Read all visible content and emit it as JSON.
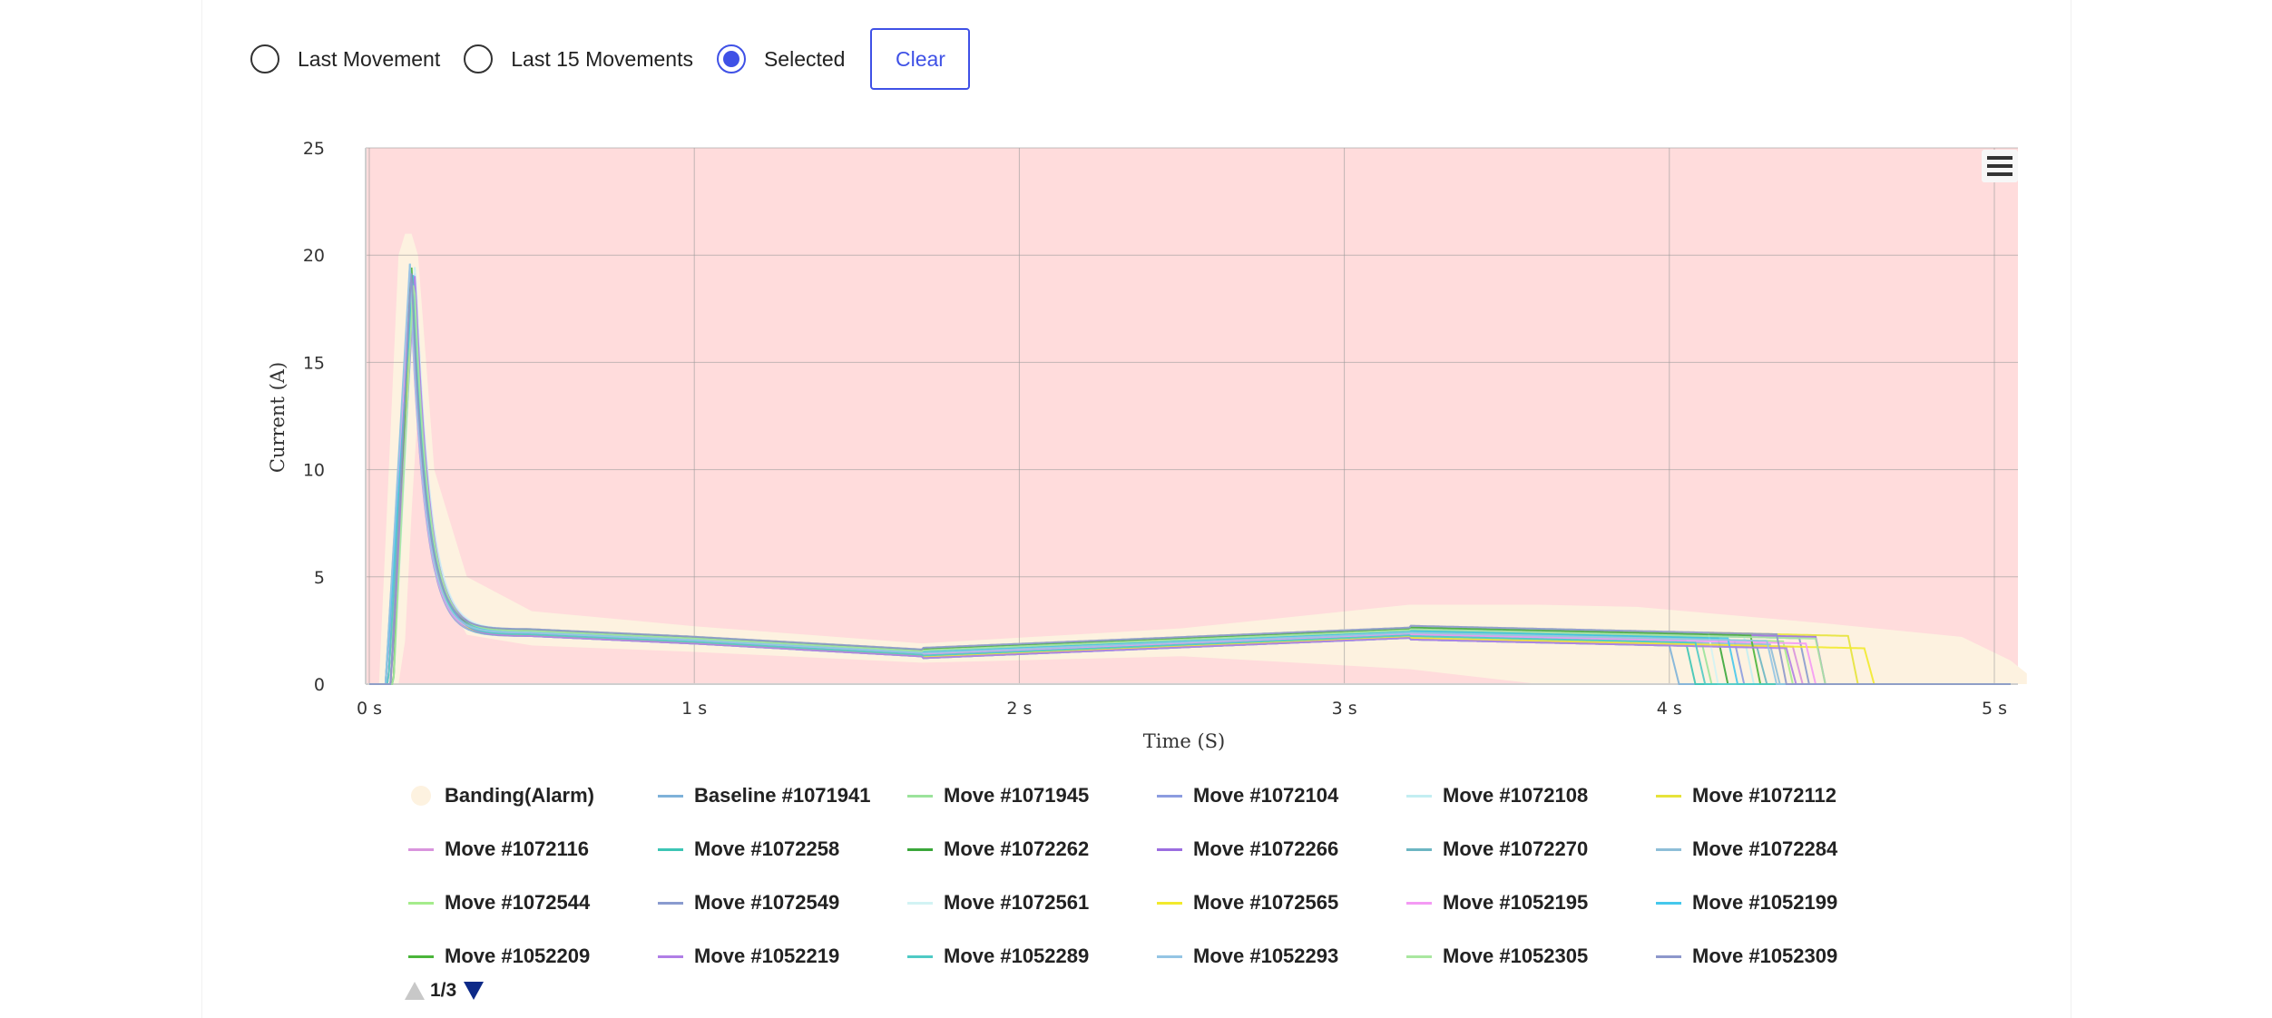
{
  "controls": {
    "options": [
      {
        "label": "Last Movement",
        "selected": false
      },
      {
        "label": "Last 15 Movements",
        "selected": false
      },
      {
        "label": "Selected",
        "selected": true
      }
    ],
    "clear_label": "Clear"
  },
  "colors": {
    "accent": "#3f51e6",
    "plot_bg": "#ffdcdc",
    "band": "#fdf2e0",
    "pager_active": "#0d2a88"
  },
  "chart_data": {
    "type": "line",
    "xlabel": "Time (S)",
    "ylabel": "Current (A)",
    "xlim": [
      0,
      5.1
    ],
    "ylim": [
      0,
      25
    ],
    "x_ticks": [
      0,
      1,
      2,
      3,
      4,
      5
    ],
    "x_tick_labels": [
      "0 s",
      "1 s",
      "2 s",
      "3 s",
      "4 s",
      "5 s"
    ],
    "y_ticks": [
      0,
      5,
      10,
      15,
      20,
      25
    ],
    "y_tick_labels": [
      "0",
      "5",
      "10",
      "15",
      "20",
      "25"
    ],
    "grid": true,
    "legend_position": "bottom",
    "band": {
      "name": "Banding(Alarm)",
      "x": [
        0,
        0.03,
        0.06,
        0.09,
        0.11,
        0.13,
        0.15,
        0.2,
        0.3,
        0.5,
        1.0,
        1.7,
        2.5,
        3.2,
        3.6,
        3.9,
        4.5,
        4.9,
        5.05,
        5.1
      ],
      "upper": [
        0,
        0,
        10,
        20,
        21,
        21,
        20,
        10,
        5,
        3.4,
        2.7,
        1.9,
        2.6,
        3.7,
        3.7,
        3.6,
        2.8,
        2.2,
        1.1,
        0.5
      ],
      "lower": [
        0,
        0,
        0,
        0,
        2,
        8,
        13,
        5,
        2.3,
        1.8,
        1.5,
        1.0,
        1.3,
        0.7,
        0,
        0,
        0,
        0,
        0,
        0
      ]
    },
    "series": [
      {
        "name": "Baseline #1071941",
        "color": "#7eb2d9",
        "end": 4.0
      },
      {
        "name": "Move #1071945",
        "color": "#9be39b",
        "end": 4.1
      },
      {
        "name": "Move #1072104",
        "color": "#8c9ce0",
        "end": 4.2
      },
      {
        "name": "Move #1072108",
        "color": "#c3eef2",
        "end": 4.23
      },
      {
        "name": "Move #1072112",
        "color": "#e6e33a",
        "end": 4.55
      },
      {
        "name": "Move #1072116",
        "color": "#d994dd",
        "end": 4.38
      },
      {
        "name": "Move #1072258",
        "color": "#3cc5b5",
        "end": 4.05
      },
      {
        "name": "Move #1072262",
        "color": "#3aa73a",
        "end": 4.15
      },
      {
        "name": "Move #1072266",
        "color": "#9b6de0",
        "end": 4.45
      },
      {
        "name": "Move #1072270",
        "color": "#6cb6c2",
        "end": 4.27
      },
      {
        "name": "Move #1072284",
        "color": "#8ebed8",
        "end": 4.31
      },
      {
        "name": "Move #1072544",
        "color": "#a5ec8c",
        "end": 4.35
      },
      {
        "name": "Move #1072549",
        "color": "#8a9bcf",
        "end": 4.4
      },
      {
        "name": "Move #1072561",
        "color": "#d2f3f4",
        "end": 4.12
      },
      {
        "name": "Move #1072565",
        "color": "#f2ea2c",
        "end": 4.6
      },
      {
        "name": "Move #1052195",
        "color": "#f49af4",
        "end": 4.42
      },
      {
        "name": "Move #1052199",
        "color": "#45c8ec",
        "end": 4.18
      },
      {
        "name": "Move #1052209",
        "color": "#4ab53a",
        "end": 4.25
      },
      {
        "name": "Move #1052219",
        "color": "#b07ee6",
        "end": 4.36
      },
      {
        "name": "Move #1052289",
        "color": "#4fcac5",
        "end": 4.08
      },
      {
        "name": "Move #1052293",
        "color": "#94c5e4",
        "end": 4.3
      },
      {
        "name": "Move #1052305",
        "color": "#a9e7a0",
        "end": 4.45
      },
      {
        "name": "Move #1052309",
        "color": "#8d97cb",
        "end": 4.33
      }
    ]
  },
  "legend": {
    "items": [
      "Banding(Alarm)",
      "Baseline #1071941",
      "Move #1071945",
      "Move #1072104",
      "Move #1072108",
      "Move #1072112",
      "Move #1072116",
      "Move #1072258",
      "Move #1072262",
      "Move #1072266",
      "Move #1072270",
      "Move #1072284",
      "Move #1072544",
      "Move #1072549",
      "Move #1072561",
      "Move #1072565",
      "Move #1052195",
      "Move #1052199",
      "Move #1052209",
      "Move #1052219",
      "Move #1052289",
      "Move #1052293",
      "Move #1052305",
      "Move #1052309"
    ],
    "page": "1/3"
  }
}
